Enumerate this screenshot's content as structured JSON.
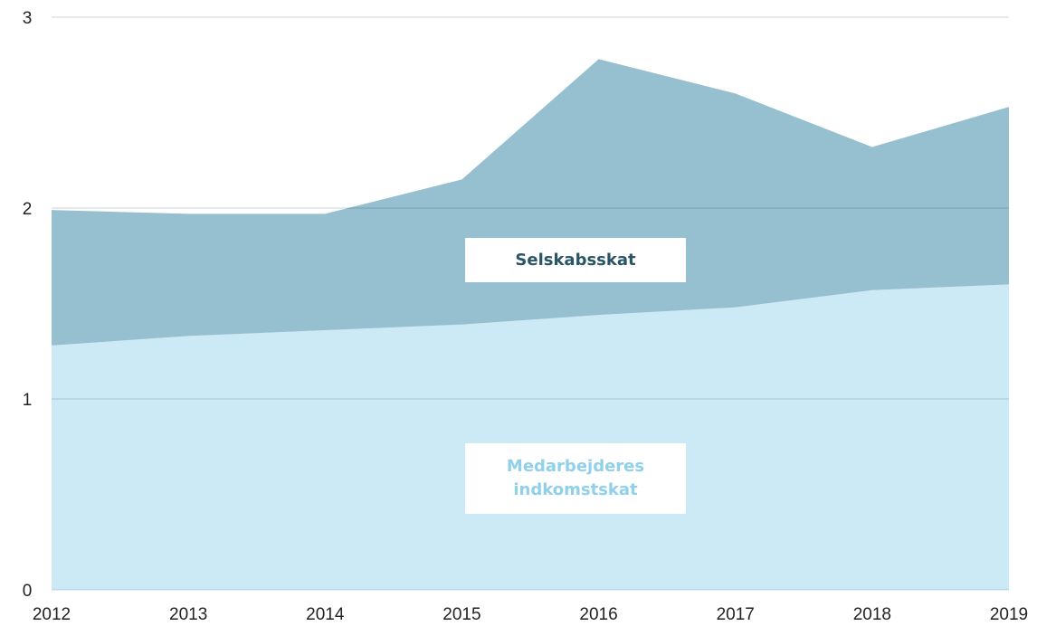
{
  "chart_data": {
    "type": "stacked_area",
    "categories": [
      "2012",
      "2013",
      "2014",
      "2015",
      "2016",
      "2017",
      "2018",
      "2019"
    ],
    "series": [
      {
        "name": "Medarbejderes indkomstskat",
        "color": "#cce9f6",
        "label_color": "#8fd0ea",
        "values": [
          1.28,
          1.33,
          1.36,
          1.39,
          1.44,
          1.48,
          1.57,
          1.6
        ]
      },
      {
        "name": "Selskabsskat",
        "color": "#96c0d0",
        "label_color": "#2a5566",
        "values": [
          0.71,
          0.64,
          0.61,
          0.76,
          1.34,
          1.12,
          0.75,
          0.93
        ]
      }
    ],
    "ylim": [
      0,
      3
    ],
    "yticks": [
      0,
      1,
      2,
      3
    ],
    "grid": true
  }
}
